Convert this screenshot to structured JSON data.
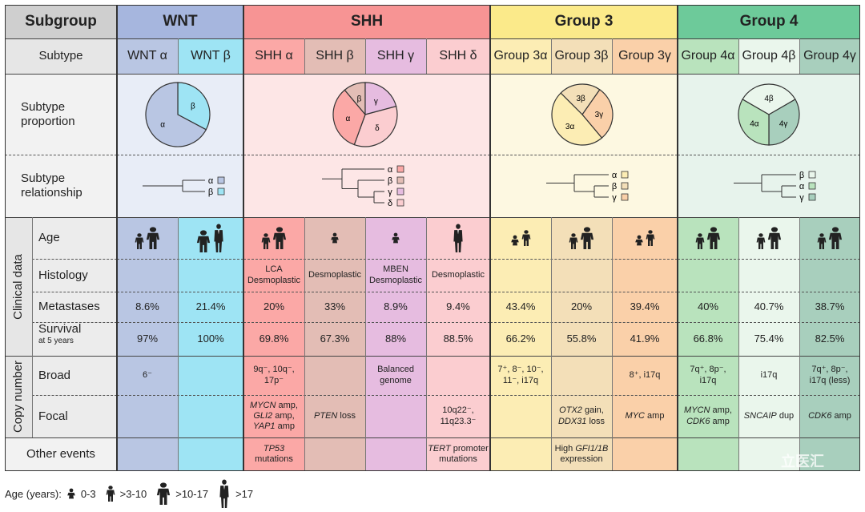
{
  "header": {
    "subgroup": "Subgroup",
    "wnt": "WNT",
    "shh": "SHH",
    "g3": "Group 3",
    "g4": "Group 4"
  },
  "rows": {
    "subtype": "Subtype",
    "proportion": "Subtype\nproportion",
    "relationship": "Subtype\nrelationship",
    "clinical": "Clinical data",
    "age": "Age",
    "histology": "Histology",
    "metastases": "Metastases",
    "survival": "Survival",
    "survival_sub": "at 5 years",
    "copy_number": "Copy number",
    "broad": "Broad",
    "focal": "Focal",
    "other": "Other events"
  },
  "subtypes": [
    "WNT α",
    "WNT β",
    "SHH α",
    "SHH β",
    "SHH γ",
    "SHH δ",
    "Group 3α",
    "Group 3β",
    "Group 3γ",
    "Group 4α",
    "Group 4β",
    "Group 4γ"
  ],
  "pies": {
    "wnt": [
      {
        "label": "α"
      },
      {
        "label": "β"
      }
    ],
    "shh": [
      {
        "label": "β"
      },
      {
        "label": "γ"
      },
      {
        "label": "α"
      },
      {
        "label": "δ"
      }
    ],
    "g3": [
      {
        "label": "3β"
      },
      {
        "label": "3γ"
      },
      {
        "label": "3α"
      }
    ],
    "g4": [
      {
        "label": "4β"
      },
      {
        "label": "4γ"
      },
      {
        "label": "4α"
      }
    ]
  },
  "trees": {
    "wnt": [
      "α",
      "β"
    ],
    "shh": [
      "α",
      "β",
      "γ",
      "δ"
    ],
    "g3": [
      "α",
      "β",
      "γ"
    ],
    "g4": [
      "β",
      "α",
      "γ"
    ]
  },
  "histology": [
    "",
    "",
    "LCA\nDesmoplastic",
    "Desmoplastic",
    "MBEN\nDesmoplastic",
    "Desmoplastic",
    "",
    "",
    "",
    "",
    "",
    ""
  ],
  "metastases": [
    "8.6%",
    "21.4%",
    "20%",
    "33%",
    "8.9%",
    "9.4%",
    "43.4%",
    "20%",
    "39.4%",
    "40%",
    "40.7%",
    "38.7%"
  ],
  "survival": [
    "97%",
    "100%",
    "69.8%",
    "67.3%",
    "88%",
    "88.5%",
    "66.2%",
    "55.8%",
    "41.9%",
    "66.8%",
    "75.4%",
    "82.5%"
  ],
  "broad": [
    "6⁻",
    "",
    "9q⁻, 10q⁻,\n17p⁻",
    "",
    "Balanced\ngenome",
    "",
    "7⁺, 8⁻, 10⁻,\n11⁻, i17q",
    "",
    "8⁺, i17q",
    "7q⁺, 8p⁻,\ni17q",
    "i17q",
    "7q⁺, 8p⁻,\ni17q (less)"
  ],
  "focal": [
    {
      "lines": []
    },
    {
      "lines": []
    },
    {
      "lines": [
        [
          {
            "t": "MYCN",
            "i": true
          },
          {
            "t": " amp,"
          }
        ],
        [
          {
            "t": "GLI2",
            "i": true
          },
          {
            "t": " amp,"
          }
        ],
        [
          {
            "t": "YAP1",
            "i": true
          },
          {
            "t": " amp"
          }
        ]
      ]
    },
    {
      "lines": [
        [
          {
            "t": "PTEN",
            "i": true
          },
          {
            "t": " loss"
          }
        ]
      ]
    },
    {
      "lines": []
    },
    {
      "lines": [
        [
          {
            "t": "10q22⁻,"
          }
        ],
        [
          {
            "t": "11q23.3⁻"
          }
        ]
      ]
    },
    {
      "lines": []
    },
    {
      "lines": [
        [
          {
            "t": "OTX2",
            "i": true
          },
          {
            "t": " gain,"
          }
        ],
        [
          {
            "t": "DDX31",
            "i": true
          },
          {
            "t": " loss"
          }
        ]
      ]
    },
    {
      "lines": [
        [
          {
            "t": "MYC",
            "i": true
          },
          {
            "t": " amp"
          }
        ]
      ]
    },
    {
      "lines": [
        [
          {
            "t": "MYCN",
            "i": true
          },
          {
            "t": " amp,"
          }
        ],
        [
          {
            "t": "CDK6",
            "i": true
          },
          {
            "t": " amp"
          }
        ]
      ]
    },
    {
      "lines": [
        [
          {
            "t": "SNCAIP",
            "i": true
          },
          {
            "t": " dup"
          }
        ]
      ]
    },
    {
      "lines": [
        [
          {
            "t": "CDK6",
            "i": true
          },
          {
            "t": " amp"
          }
        ]
      ]
    }
  ],
  "other": [
    {
      "lines": []
    },
    {
      "lines": []
    },
    {
      "lines": [
        [
          {
            "t": "TP53",
            "i": true
          }
        ],
        [
          {
            "t": "mutations"
          }
        ]
      ]
    },
    {
      "lines": []
    },
    {
      "lines": []
    },
    {
      "lines": [
        [
          {
            "t": "TERT",
            "i": true
          },
          {
            "t": " promoter"
          }
        ],
        [
          {
            "t": "mutations"
          }
        ]
      ]
    },
    {
      "lines": []
    },
    {
      "lines": [
        [
          {
            "t": "High "
          },
          {
            "t": "GFI1/1B",
            "i": true
          }
        ],
        [
          {
            "t": "expression"
          }
        ]
      ]
    },
    {
      "lines": []
    },
    {
      "lines": []
    },
    {
      "lines": []
    },
    {
      "lines": []
    }
  ],
  "ages": [
    [
      2,
      3
    ],
    [
      3,
      4
    ],
    [
      2,
      3
    ],
    [
      1
    ],
    [
      1
    ],
    [
      4
    ],
    [
      1,
      2
    ],
    [
      2,
      3
    ],
    [
      1,
      2
    ],
    [
      2,
      3
    ],
    [
      2,
      3
    ],
    [
      2,
      3
    ]
  ],
  "legend": {
    "title": "Age (years):",
    "items": [
      "0-3",
      ">3-10",
      ">10-17",
      ">17"
    ]
  },
  "watermark": "立医汇",
  "colors": {
    "wnt": [
      "#b9c6e3",
      "#9ee4f4"
    ],
    "shh": [
      "#fba8a6",
      "#e3bdb5",
      "#e6bce0",
      "#fbcdd0"
    ],
    "g3": [
      "#fcedb4",
      "#f3dfb8",
      "#fad0a9"
    ],
    "g4": [
      "#b9e3bd",
      "#eaf6ec",
      "#a8cfbd"
    ],
    "head": {
      "subgroup": "#cfcfcf",
      "wnt": "#a6b6de",
      "shh": "#f79494",
      "g3": "#fbea8a",
      "g4": "#6dca9a"
    },
    "bg": {
      "wnt": "#e8edf7",
      "shh": "#fde6e6",
      "g3": "#fdf8e1",
      "g4": "#e7f3ec"
    }
  }
}
